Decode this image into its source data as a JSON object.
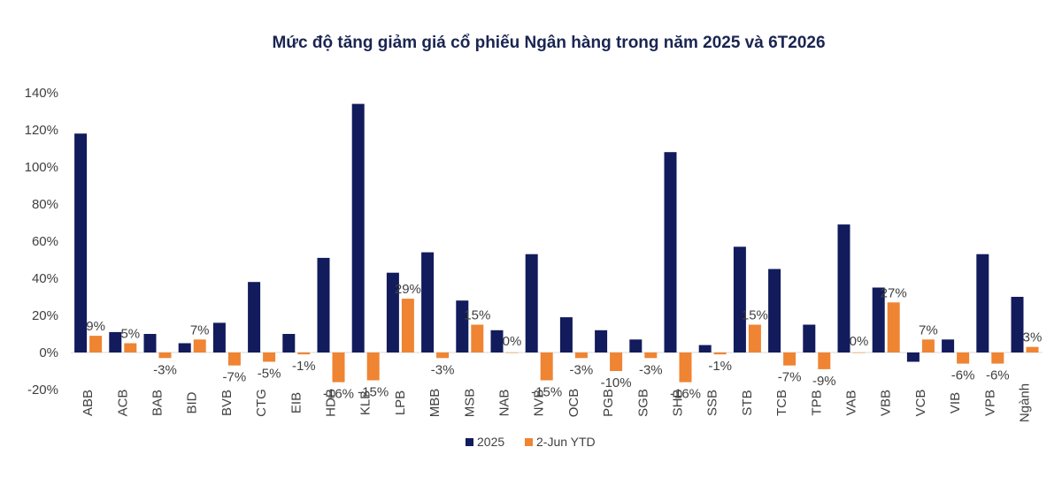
{
  "chart_data": {
    "type": "bar",
    "title": "Mức độ tăng giảm giá cổ phiếu Ngân hàng trong năm 2025 và 6T2026",
    "xlabel": "",
    "ylabel": "",
    "ylim": [
      -20,
      140
    ],
    "yticks": [
      -20,
      0,
      20,
      40,
      60,
      80,
      100,
      120,
      140
    ],
    "ytick_labels": [
      "-20%",
      "0%",
      "20%",
      "40%",
      "60%",
      "80%",
      "100%",
      "120%",
      "140%"
    ],
    "grid": false,
    "legend_position": "bottom",
    "categories": [
      "ABB",
      "ACB",
      "BAB",
      "BID",
      "BVB",
      "CTG",
      "EIB",
      "HDB",
      "KLB",
      "LPB",
      "MBB",
      "MSB",
      "NAB",
      "NVB",
      "OCB",
      "PGB",
      "SGB",
      "SHB",
      "SSB",
      "STB",
      "TCB",
      "TPB",
      "VAB",
      "VBB",
      "VCB",
      "VIB",
      "VPB",
      "Ngành"
    ],
    "series": [
      {
        "name": "2025",
        "color": "#121b5c",
        "values": [
          118,
          11,
          10,
          5,
          16,
          38,
          10,
          51,
          134,
          43,
          54,
          28,
          12,
          53,
          19,
          12,
          7,
          108,
          4,
          57,
          45,
          15,
          69,
          35,
          -5,
          7,
          53,
          30
        ]
      },
      {
        "name": "2-Jun YTD",
        "color": "#ef8432",
        "values": [
          9,
          5,
          -3,
          7,
          -7,
          -5,
          -1,
          -16,
          -15,
          29,
          -3,
          15,
          0,
          -15,
          -3,
          -10,
          -3,
          -16,
          -1,
          15,
          -7,
          -9,
          0,
          27,
          7,
          -6,
          -6,
          3
        ],
        "labels": [
          "9%",
          "5%",
          "-3%",
          "7%",
          "-7%",
          "-5%",
          "-1%",
          "-16%",
          "-15%",
          "29%",
          "-3%",
          "15%",
          "0%",
          "-15%",
          "-3%",
          "-10%",
          "-3%",
          "-16%",
          "-1%",
          "15%",
          "-7%",
          "-9%",
          "0%",
          "27%",
          "7%",
          "-6%",
          "-6%",
          "3%"
        ]
      }
    ]
  }
}
